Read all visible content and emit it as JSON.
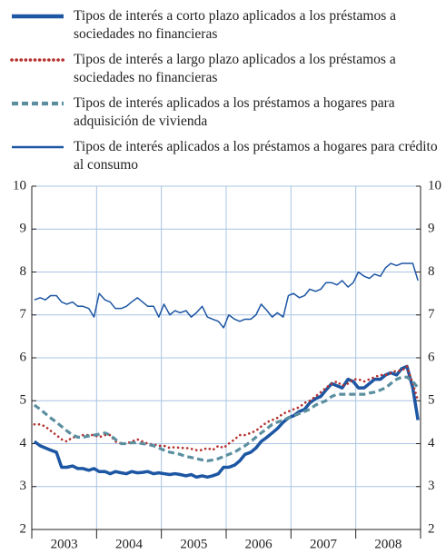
{
  "chart_data": {
    "type": "line",
    "x": [
      2003.04,
      2003.13,
      2003.21,
      2003.29,
      2003.38,
      2003.46,
      2003.54,
      2003.63,
      2003.71,
      2003.79,
      2003.88,
      2003.96,
      2004.04,
      2004.13,
      2004.21,
      2004.29,
      2004.38,
      2004.46,
      2004.54,
      2004.63,
      2004.71,
      2004.79,
      2004.88,
      2004.96,
      2005.04,
      2005.13,
      2005.21,
      2005.29,
      2005.38,
      2005.46,
      2005.54,
      2005.63,
      2005.71,
      2005.79,
      2005.88,
      2005.96,
      2006.04,
      2006.13,
      2006.21,
      2006.29,
      2006.38,
      2006.46,
      2006.54,
      2006.63,
      2006.71,
      2006.79,
      2006.88,
      2006.96,
      2007.04,
      2007.13,
      2007.21,
      2007.29,
      2007.38,
      2007.46,
      2007.54,
      2007.63,
      2007.71,
      2007.79,
      2007.88,
      2007.96,
      2008.04,
      2008.13,
      2008.21,
      2008.29,
      2008.38,
      2008.46,
      2008.54,
      2008.63,
      2008.71,
      2008.79,
      2008.88,
      2008.96
    ],
    "xlim": [
      2003,
      2009
    ],
    "xticks": [
      {
        "value": 2003.5,
        "label": "2003"
      },
      {
        "value": 2004.5,
        "label": "2004"
      },
      {
        "value": 2005.5,
        "label": "2005"
      },
      {
        "value": 2006.5,
        "label": "2006"
      },
      {
        "value": 2007.5,
        "label": "2007"
      },
      {
        "value": 2008.5,
        "label": "2008"
      }
    ],
    "ylim": [
      2,
      10
    ],
    "yticks": [
      2,
      3,
      4,
      5,
      6,
      7,
      8,
      9,
      10
    ],
    "y2lim": [
      2,
      10
    ],
    "y2ticks": [
      2,
      3,
      4,
      5,
      6,
      7,
      8,
      9,
      10
    ],
    "grid": true,
    "series": [
      {
        "name": "Tipos de interés a corto plazo aplicados a los préstamos a sociedades no financieras",
        "color": "#1d56a3",
        "style": "thick",
        "values": [
          4.05,
          3.95,
          3.9,
          3.85,
          3.8,
          3.45,
          3.45,
          3.48,
          3.42,
          3.42,
          3.38,
          3.42,
          3.35,
          3.35,
          3.3,
          3.35,
          3.32,
          3.3,
          3.35,
          3.32,
          3.33,
          3.35,
          3.3,
          3.32,
          3.3,
          3.28,
          3.3,
          3.28,
          3.25,
          3.28,
          3.22,
          3.25,
          3.22,
          3.25,
          3.3,
          3.45,
          3.45,
          3.5,
          3.6,
          3.75,
          3.8,
          3.9,
          4.05,
          4.15,
          4.25,
          4.35,
          4.5,
          4.6,
          4.65,
          4.75,
          4.8,
          4.95,
          5.05,
          5.1,
          5.25,
          5.4,
          5.35,
          5.3,
          5.5,
          5.45,
          5.3,
          5.3,
          5.4,
          5.5,
          5.5,
          5.6,
          5.65,
          5.6,
          5.75,
          5.8,
          5.3,
          4.55
        ]
      },
      {
        "name": "Tipos de interés a largo plazo aplicados a los préstamos a sociedades no financieras",
        "color": "#b5312e",
        "style": "dotted",
        "values": [
          4.45,
          4.45,
          4.4,
          4.3,
          4.2,
          4.1,
          4.05,
          4.15,
          4.15,
          4.2,
          4.2,
          4.2,
          4.15,
          4.2,
          4.2,
          4.05,
          4.0,
          4.0,
          4.05,
          4.1,
          4.05,
          4.0,
          3.98,
          3.95,
          3.95,
          3.9,
          3.92,
          3.9,
          3.9,
          3.88,
          3.85,
          3.85,
          3.9,
          3.85,
          3.95,
          3.9,
          4.0,
          4.1,
          4.2,
          4.2,
          4.25,
          4.3,
          4.4,
          4.5,
          4.55,
          4.6,
          4.7,
          4.75,
          4.8,
          4.85,
          4.95,
          5.0,
          5.1,
          5.2,
          5.3,
          5.4,
          5.45,
          5.35,
          5.4,
          5.5,
          5.5,
          5.45,
          5.5,
          5.55,
          5.6,
          5.6,
          5.65,
          5.7,
          5.7,
          5.8,
          5.4,
          5.0
        ]
      },
      {
        "name": "Tipos de interés aplicados a los préstamos a hogares para adquisición de vivienda",
        "color": "#5b8fa0",
        "style": "dashed",
        "values": [
          4.9,
          4.8,
          4.7,
          4.6,
          4.5,
          4.4,
          4.3,
          4.2,
          4.15,
          4.15,
          4.18,
          4.2,
          4.22,
          4.25,
          4.2,
          4.1,
          4.0,
          4.0,
          4.02,
          4.02,
          4.0,
          3.98,
          3.95,
          3.9,
          3.85,
          3.8,
          3.78,
          3.75,
          3.7,
          3.68,
          3.65,
          3.62,
          3.6,
          3.62,
          3.65,
          3.7,
          3.75,
          3.8,
          3.88,
          3.95,
          4.05,
          4.15,
          4.25,
          4.35,
          4.45,
          4.5,
          4.55,
          4.6,
          4.65,
          4.7,
          4.75,
          4.8,
          4.9,
          4.95,
          5.0,
          5.1,
          5.15,
          5.15,
          5.15,
          5.15,
          5.15,
          5.15,
          5.18,
          5.2,
          5.25,
          5.3,
          5.4,
          5.5,
          5.55,
          5.55,
          5.45,
          5.3
        ]
      },
      {
        "name": "Tipos de interés aplicados a los préstamos a hogares para crédito al consumo",
        "color": "#1d56a3",
        "style": "thin",
        "values": [
          7.35,
          7.4,
          7.35,
          7.45,
          7.45,
          7.3,
          7.25,
          7.3,
          7.2,
          7.2,
          7.15,
          6.95,
          7.5,
          7.35,
          7.3,
          7.15,
          7.15,
          7.2,
          7.3,
          7.4,
          7.3,
          7.2,
          7.2,
          6.95,
          7.25,
          7.0,
          7.1,
          7.05,
          7.1,
          6.95,
          7.05,
          7.2,
          6.95,
          6.9,
          6.85,
          6.7,
          7.0,
          6.9,
          6.85,
          6.9,
          6.9,
          7.0,
          7.25,
          7.1,
          6.95,
          7.05,
          6.95,
          7.45,
          7.5,
          7.4,
          7.45,
          7.6,
          7.55,
          7.6,
          7.75,
          7.75,
          7.7,
          7.8,
          7.65,
          7.75,
          8.0,
          7.9,
          7.85,
          7.95,
          7.9,
          8.1,
          8.2,
          8.15,
          8.2,
          8.2,
          8.2,
          7.8
        ]
      }
    ]
  }
}
